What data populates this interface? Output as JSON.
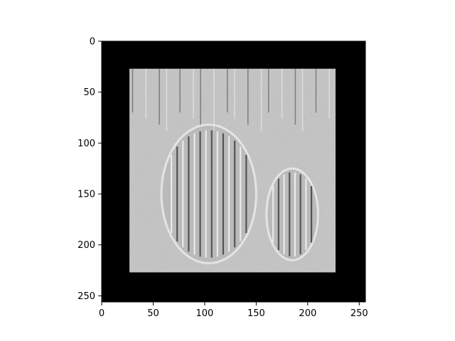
{
  "chart_data": {
    "type": "heatmap",
    "title": "",
    "xlabel": "",
    "ylabel": "",
    "image_width": 256,
    "image_height": 256,
    "content_region": {
      "x": [
        27,
        227
      ],
      "y": [
        27,
        227
      ]
    },
    "background_value": "black",
    "colormap": "gray",
    "xlim": [
      0,
      256
    ],
    "ylim": [
      256,
      0
    ],
    "x_ticks": [
      0,
      50,
      100,
      150,
      200,
      250
    ],
    "y_ticks": [
      0,
      50,
      100,
      150,
      200,
      250
    ],
    "x_tick_labels": [
      "0",
      "50",
      "100",
      "150",
      "200",
      "250"
    ],
    "y_tick_labels": [
      "0",
      "50",
      "100",
      "150",
      "200",
      "250"
    ],
    "grid": false,
    "legend": "none",
    "depicted_subject": "embossed grayscale image of two barrel cacti",
    "colors": {
      "background": "#000000",
      "content_base": "#9a9a9a",
      "highlight": "#f0f0f0",
      "shadow": "#4a4a4a"
    }
  }
}
